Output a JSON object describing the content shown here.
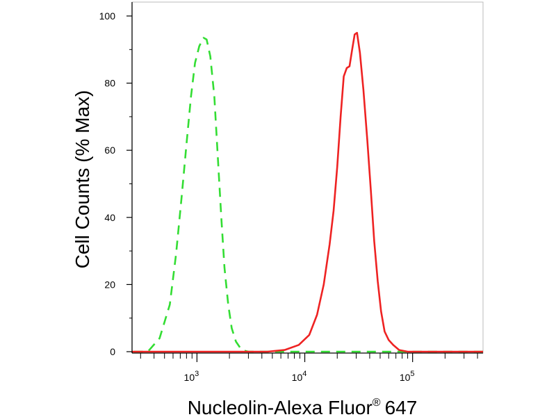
{
  "chart_data": {
    "type": "line",
    "xlabel": "Nucleolin-Alexa Fluor",
    "xlabel_superscript": "®",
    "xlabel_suffix": "647",
    "ylabel": "Cell Counts (% Max)",
    "x_scale": "log",
    "xlim": [
      250,
      450000
    ],
    "ylim": [
      0,
      104
    ],
    "x_ticks": [
      {
        "value": 1000,
        "base": "10",
        "exp": "3"
      },
      {
        "value": 10000,
        "base": "10",
        "exp": "4"
      },
      {
        "value": 100000,
        "base": "10",
        "exp": "5"
      }
    ],
    "y_ticks": [
      0,
      20,
      40,
      60,
      80,
      100
    ],
    "grid": false,
    "series": [
      {
        "color": "#33dd33",
        "line_style": "dashed",
        "points": [
          [
            260,
            0
          ],
          [
            350,
            0
          ],
          [
            450,
            4
          ],
          [
            560,
            14
          ],
          [
            640,
            29
          ],
          [
            720,
            46
          ],
          [
            800,
            62
          ],
          [
            880,
            76
          ],
          [
            960,
            86
          ],
          [
            1050,
            91
          ],
          [
            1150,
            93.5
          ],
          [
            1230,
            93
          ],
          [
            1330,
            88
          ],
          [
            1450,
            76
          ],
          [
            1560,
            58
          ],
          [
            1680,
            40
          ],
          [
            1800,
            25
          ],
          [
            1950,
            14
          ],
          [
            2100,
            7
          ],
          [
            2300,
            3
          ],
          [
            2600,
            0.5
          ],
          [
            3000,
            0
          ],
          [
            10000,
            0
          ],
          [
            30000,
            0
          ],
          [
            450000,
            0
          ]
        ]
      },
      {
        "color": "#ee2222",
        "line_style": "solid",
        "points": [
          [
            250,
            0
          ],
          [
            2500,
            0
          ],
          [
            4500,
            0
          ],
          [
            6500,
            0.5
          ],
          [
            8800,
            2
          ],
          [
            11000,
            5
          ],
          [
            13000,
            11
          ],
          [
            15000,
            20
          ],
          [
            17000,
            32
          ],
          [
            18500,
            42
          ],
          [
            20000,
            55
          ],
          [
            21500,
            70
          ],
          [
            23000,
            82
          ],
          [
            24500,
            84.5
          ],
          [
            26000,
            85
          ],
          [
            27500,
            90
          ],
          [
            29000,
            94.5
          ],
          [
            30500,
            95
          ],
          [
            32500,
            89
          ],
          [
            35000,
            78
          ],
          [
            38000,
            63
          ],
          [
            41000,
            48
          ],
          [
            44000,
            33
          ],
          [
            47500,
            21
          ],
          [
            51000,
            12
          ],
          [
            55000,
            6
          ],
          [
            60000,
            3.5
          ],
          [
            66000,
            2
          ],
          [
            75000,
            0.5
          ],
          [
            90000,
            0
          ],
          [
            450000,
            0
          ]
        ]
      }
    ]
  }
}
